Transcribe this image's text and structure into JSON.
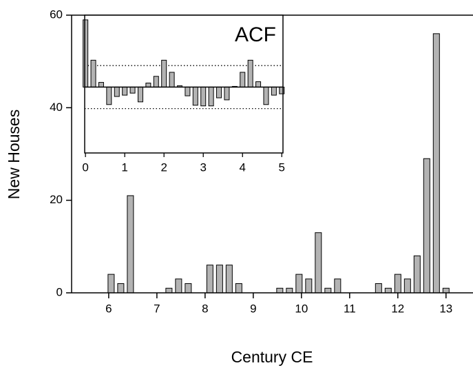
{
  "chart_data": [
    {
      "type": "bar",
      "xlabel": "Century CE",
      "ylabel": "New Houses",
      "x": [
        6.05,
        6.25,
        6.45,
        7.25,
        7.45,
        7.65,
        8.1,
        8.3,
        8.5,
        8.7,
        9.55,
        9.75,
        9.95,
        10.15,
        10.35,
        10.55,
        10.75,
        11.6,
        11.8,
        12.0,
        12.2,
        12.4,
        12.6,
        12.8,
        13.0
      ],
      "values": [
        4,
        2,
        21,
        1,
        3,
        2,
        6,
        6,
        6,
        2,
        1,
        1,
        4,
        3,
        13,
        1,
        3,
        2,
        1,
        4,
        3,
        8,
        29,
        56,
        1
      ],
      "color": "#b3b3b3",
      "xlim": [
        5.23,
        13.56
      ],
      "xticks": [
        6,
        7,
        8,
        9,
        10,
        11,
        12,
        13
      ],
      "ylim": [
        0,
        60
      ],
      "yticks": [
        0,
        20,
        40,
        60
      ]
    },
    {
      "type": "bar",
      "title": "ACF",
      "x": [
        0,
        0.2,
        0.4,
        0.6,
        0.8,
        1.0,
        1.2,
        1.4,
        1.6,
        1.8,
        2.0,
        2.2,
        2.4,
        2.6,
        2.8,
        3.0,
        3.2,
        3.4,
        3.6,
        3.8,
        4.0,
        4.2,
        4.4,
        4.6,
        4.8,
        5.0
      ],
      "values": [
        1.0,
        0.4,
        0.07,
        -0.26,
        -0.14,
        -0.12,
        -0.09,
        -0.22,
        0.06,
        0.16,
        0.4,
        0.22,
        0.02,
        -0.13,
        -0.27,
        -0.28,
        -0.28,
        -0.16,
        -0.19,
        0.01,
        0.22,
        0.4,
        0.08,
        -0.26,
        -0.12,
        -0.1
      ],
      "color": "#b3b3b3",
      "confidence": [
        -0.32,
        0.32
      ],
      "xlim": [
        -0.02,
        5.03
      ],
      "xticks": [
        0,
        1,
        2,
        3,
        4,
        5
      ],
      "ylim": [
        -0.98,
        1.07
      ]
    }
  ]
}
